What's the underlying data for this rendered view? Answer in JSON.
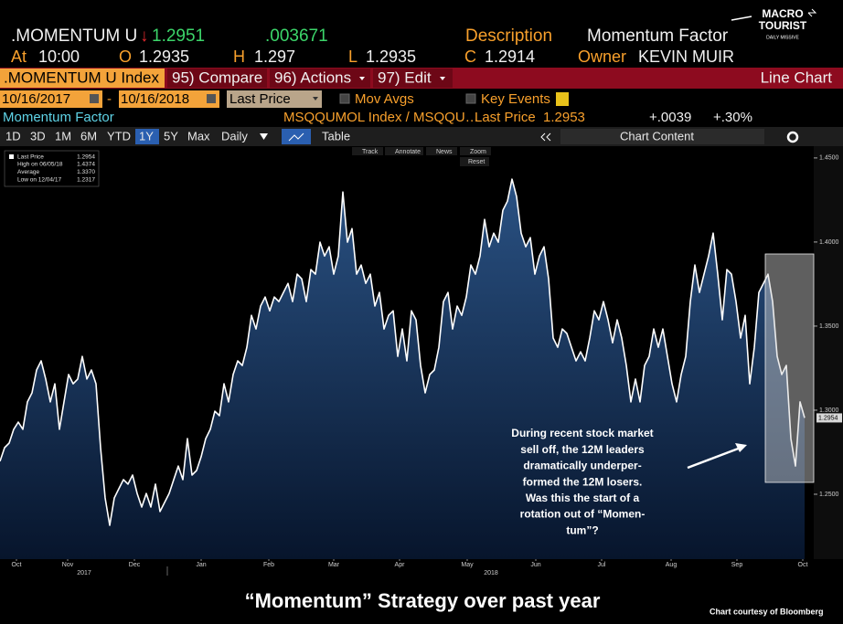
{
  "header": {
    "ticker": ".MOMENTUM U",
    "change_arrow": "↓",
    "price": "1.2951",
    "change": ".003671",
    "description_label": "Description",
    "description": "Momentum Factor",
    "at_label": "At",
    "time": "10:00",
    "open_label": "O",
    "open": "1.2935",
    "high_label": "H",
    "high": "1.297",
    "low_label": "L",
    "low": "1.2935",
    "close_label": "C",
    "close": "1.2914",
    "owner_label": "Owner",
    "owner": "KEVIN MUIR"
  },
  "logo": {
    "line1": "MACRO",
    "line2": "TOURIST",
    "line3": "DAILY MISSIVE"
  },
  "menu": {
    "security": ".MOMENTUM U Index",
    "compare": "95) Compare",
    "actions": "96) Actions",
    "edit": "97) Edit",
    "view": "Line Chart"
  },
  "controls": {
    "start_date": "10/16/2017",
    "separator": "-",
    "end_date": "10/16/2018",
    "field": "Last Price",
    "mov_avgs": "Mov Avgs",
    "key_events": "Key Events"
  },
  "info": {
    "name": "Momentum Factor",
    "security": "MSQQUMOL Index / MSQQU…",
    "field": "Last Price",
    "last": "1.2953",
    "change": "+.0039",
    "pct_change": "+.30%"
  },
  "toolbar": {
    "periods": [
      "1D",
      "3D",
      "1M",
      "6M",
      "YTD",
      "1Y",
      "5Y",
      "Max"
    ],
    "selected": "1Y",
    "frequency": "Daily",
    "table": "Table",
    "chart_content": "Chart Content"
  },
  "chart_data": {
    "type": "area",
    "series": [
      {
        "name": "Last Price",
        "color": "#ffffff",
        "values": [
          1.2696,
          1.2777,
          1.2804,
          1.2886,
          1.2929,
          1.2886,
          1.3049,
          1.3103,
          1.3239,
          1.3293,
          1.3185,
          1.3049,
          1.3157,
          1.2886,
          1.3049,
          1.3212,
          1.3157,
          1.3185,
          1.332,
          1.3185,
          1.3239,
          1.3157,
          1.2777,
          1.2478,
          1.2315,
          1.2478,
          1.2533,
          1.2587,
          1.256,
          1.2614,
          1.2505,
          1.2424,
          1.2505,
          1.2424,
          1.256,
          1.2397,
          1.2451,
          1.2505,
          1.2587,
          1.2668,
          1.2587,
          1.2831,
          1.2614,
          1.2641,
          1.2723,
          1.2831,
          1.2886,
          1.2994,
          1.2967,
          1.3157,
          1.3049,
          1.3212,
          1.3293,
          1.3266,
          1.3374,
          1.3564,
          1.3483,
          1.3619,
          1.3673,
          1.3591,
          1.3673,
          1.3646,
          1.37,
          1.3754,
          1.3646,
          1.3809,
          1.3781,
          1.3646,
          1.3836,
          1.3809,
          1.3999,
          1.3917,
          1.3972,
          1.3809,
          1.3917,
          1.4297,
          1.3999,
          1.408,
          1.3809,
          1.3863,
          1.3754,
          1.3809,
          1.3619,
          1.37,
          1.3483,
          1.3564,
          1.3591,
          1.332,
          1.3483,
          1.3293,
          1.3591,
          1.3537,
          1.3266,
          1.3103,
          1.3212,
          1.3239,
          1.3374,
          1.3646,
          1.37,
          1.3483,
          1.3619,
          1.3564,
          1.3673,
          1.3863,
          1.3809,
          1.3917,
          1.4134,
          1.3972,
          1.4053,
          1.3999,
          1.4189,
          1.4243,
          1.4374,
          1.427,
          1.4053,
          1.3972,
          1.4026,
          1.3809,
          1.3917,
          1.3972,
          1.3781,
          1.3429,
          1.3374,
          1.3483,
          1.3456,
          1.3374,
          1.3293,
          1.3347,
          1.3293,
          1.3429,
          1.3591,
          1.3537,
          1.3646,
          1.3537,
          1.3401,
          1.3537,
          1.3429,
          1.3266,
          1.3049,
          1.3185,
          1.3049,
          1.3266,
          1.332,
          1.3483,
          1.3374,
          1.3483,
          1.332,
          1.3157,
          1.3049,
          1.3212,
          1.332,
          1.3646,
          1.3863,
          1.37,
          1.3809,
          1.3917,
          1.4053,
          1.3809,
          1.3537,
          1.3836,
          1.3809,
          1.3646,
          1.3429,
          1.3564,
          1.3157,
          1.3374,
          1.37,
          1.3754,
          1.3809,
          1.3646,
          1.332,
          1.3212,
          1.3266,
          1.2831,
          1.2668,
          1.3049,
          1.2954
        ]
      }
    ],
    "xlim": [
      0,
      176
    ],
    "xticks": [
      {
        "value": 3.6,
        "label": "Oct"
      },
      {
        "value": 14.8,
        "label": "Nov"
      },
      {
        "value": 29.4,
        "label": "Dec"
      },
      {
        "value": 44,
        "label": "Jan"
      },
      {
        "value": 58.8,
        "label": "Feb"
      },
      {
        "value": 73,
        "label": "Mar"
      },
      {
        "value": 87.4,
        "label": "Apr"
      },
      {
        "value": 102.2,
        "label": "May"
      },
      {
        "value": 117.2,
        "label": "Jun"
      },
      {
        "value": 131.6,
        "label": "Jul"
      },
      {
        "value": 146.8,
        "label": "Aug"
      },
      {
        "value": 161.2,
        "label": "Sep"
      },
      {
        "value": 175.6,
        "label": "Oct"
      }
    ],
    "year_ticks": [
      {
        "value": 18.4,
        "label": "2017"
      },
      {
        "value": 107.4,
        "label": "2018"
      }
    ],
    "ylim": [
      1.2125,
      1.457
    ],
    "yticks": [
      {
        "value": 1.25,
        "label": "1.2500"
      },
      {
        "value": 1.3,
        "label": "1.3000"
      },
      {
        "value": 1.35,
        "label": "1.3500"
      },
      {
        "value": 1.4,
        "label": "1.4000"
      },
      {
        "value": 1.45,
        "label": "1.4500"
      }
    ],
    "grid": false,
    "last_label": "1.2954",
    "stats": [
      {
        "label": "High on 06/05/18",
        "value": "1.4374"
      },
      {
        "label": "Average",
        "value": "1.3370"
      },
      {
        "label": "Low on 12/04/17",
        "value": "1.2317"
      }
    ],
    "tools": [
      "Track",
      "Annotate",
      "News",
      "Zoom"
    ],
    "reset": "Reset",
    "annotation": [
      "During recent stock market",
      "sell off, the 12M leaders",
      "dramatically underper-",
      "formed the 12M losers.",
      "Was this the start of a",
      "rotation out of “Momen-",
      "tum”?"
    ]
  },
  "caption": {
    "title": "“Momentum” Strategy over past year",
    "credit": "Chart courtesy of Bloomberg"
  }
}
